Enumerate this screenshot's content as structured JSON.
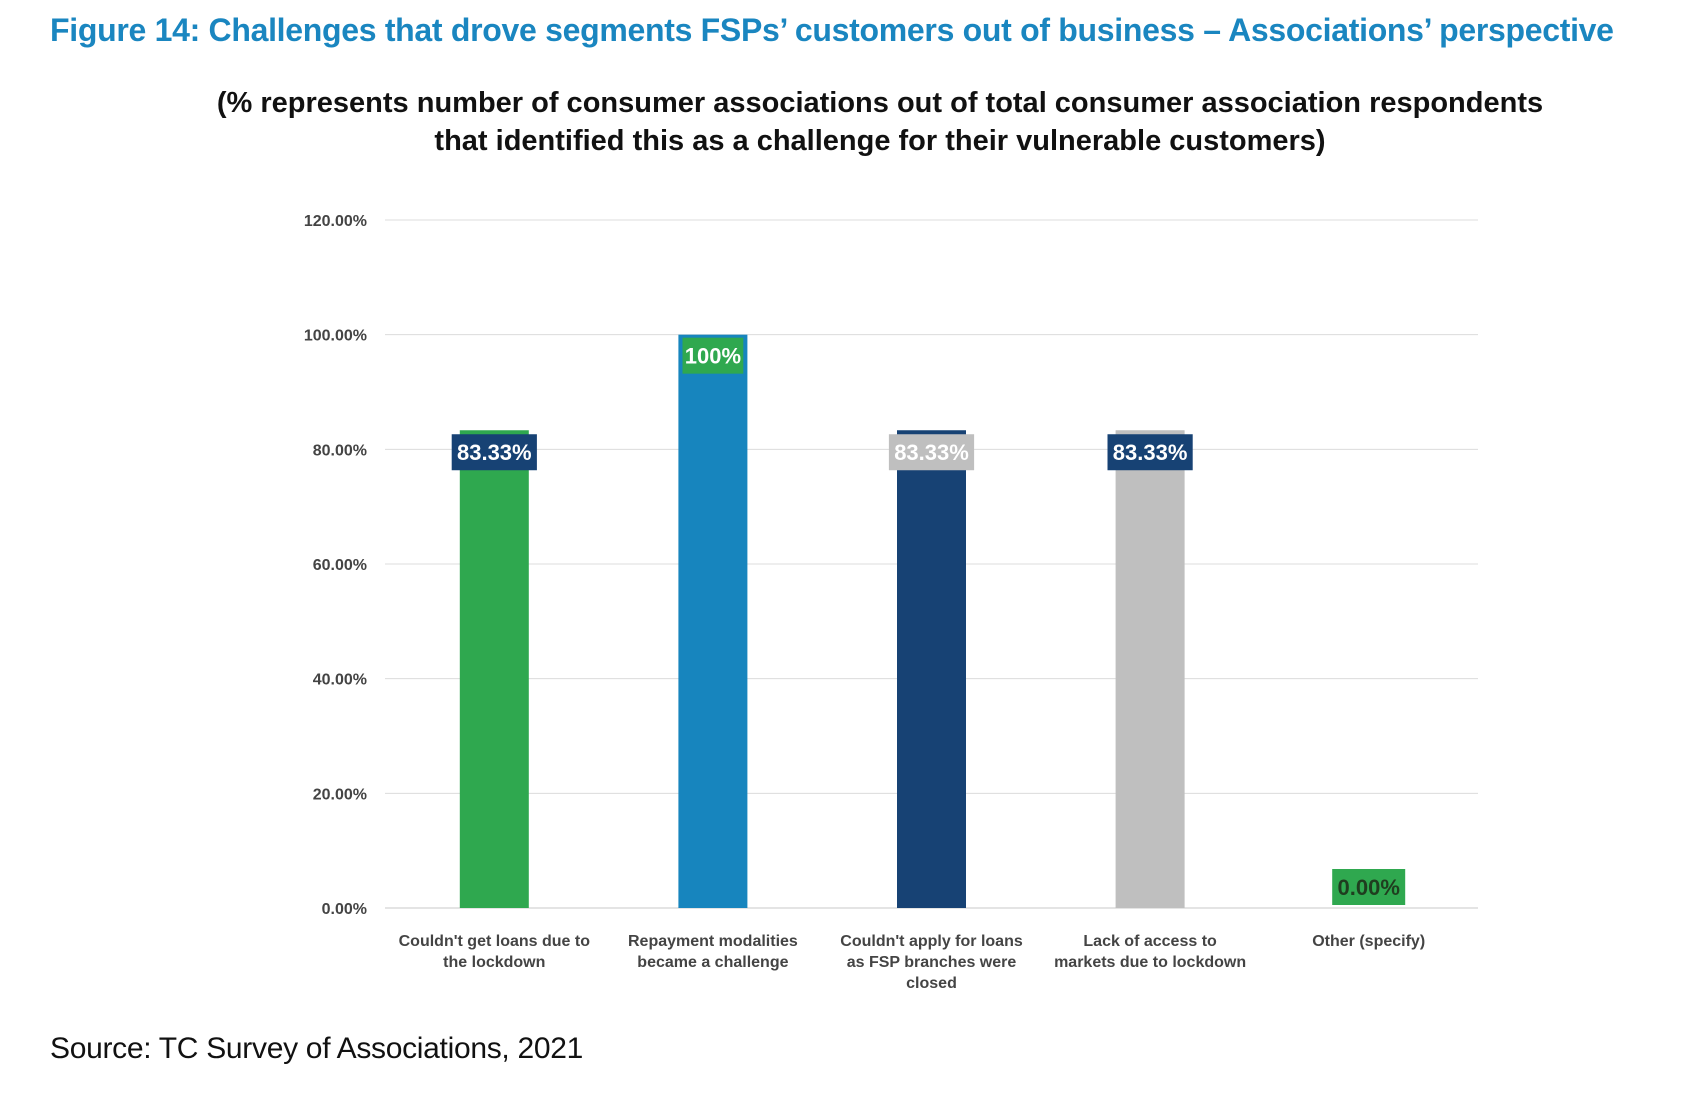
{
  "figure_title": "Figure 14: Challenges that drove segments FSPs’ customers out of business – Associations’ perspective",
  "source": "Source: TC Survey of Associations, 2021",
  "chart_data": {
    "type": "bar",
    "subtitle_lines": [
      "(% represents number of consumer associations out of total consumer association respondents",
      "that identified this as a challenge for their vulnerable customers)"
    ],
    "xlabel": "",
    "ylabel": "",
    "ylim": [
      0,
      120
    ],
    "y_ticks": [
      "0.00%",
      "20.00%",
      "40.00%",
      "60.00%",
      "80.00%",
      "100.00%",
      "120.00%"
    ],
    "grid": true,
    "legend": "none",
    "categories": [
      [
        "Couldn't get loans due to",
        "the lockdown"
      ],
      [
        "Repayment modalities",
        "became a challenge"
      ],
      [
        "Couldn't apply for loans",
        "as FSP branches were",
        "closed"
      ],
      [
        "Lack of access to",
        "markets due to lockdown"
      ],
      [
        "Other (specify)"
      ]
    ],
    "values": [
      83.33,
      100,
      83.33,
      83.33,
      0
    ],
    "data_labels": [
      "83.33%",
      "100%",
      "83.33%",
      "83.33%",
      "0.00%"
    ],
    "bar_colors": [
      "#2fa84f",
      "#1785be",
      "#174274",
      "#bfbfbf",
      "#2fa84f"
    ],
    "label_bg_colors": [
      "#174274",
      "#2fa84f",
      "#bfbfbf",
      "#174274",
      "#2fa84f"
    ],
    "label_text_colors": [
      "#ffffff",
      "#ffffff",
      "#ffffff",
      "#ffffff",
      "#1f3d1f"
    ]
  }
}
